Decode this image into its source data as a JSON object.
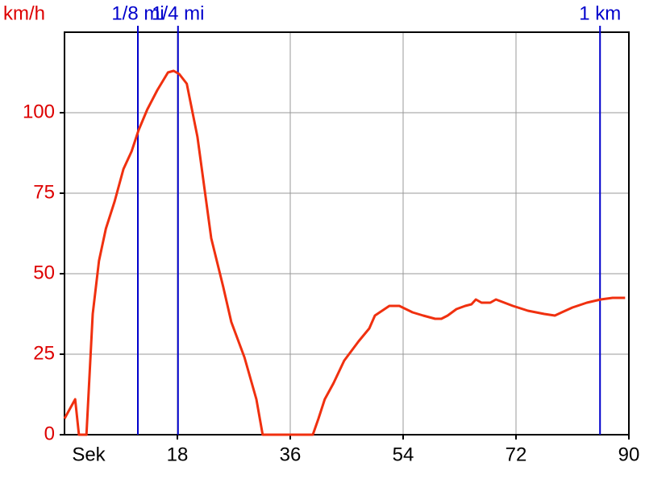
{
  "chart_data": {
    "type": "line",
    "ylabel": "km/h",
    "xlabel": "Sek",
    "x": [
      0,
      1.7,
      2.3,
      3.5,
      4.5,
      5.5,
      6.6,
      8,
      9.4,
      10.7,
      11.8,
      13.2,
      14.8,
      16.5,
      17.4,
      18.3,
      19.5,
      21.2,
      23.4,
      25.3,
      26.6,
      28.7,
      30.6,
      31.6,
      39.6,
      40.5,
      41.5,
      42.9,
      44.6,
      46.9,
      48.6,
      49.5,
      51.8,
      53.4,
      55.5,
      57.2,
      59.1,
      60.1,
      61.1,
      62.5,
      63.9,
      64.9,
      65.6,
      66.5,
      67.9,
      68.8,
      71.5,
      73.9,
      76.5,
      78.2,
      79.3,
      81,
      83.3,
      85.5,
      87.4,
      89.4
    ],
    "values": [
      5,
      11,
      0,
      0,
      37.5,
      54,
      64,
      72.5,
      82.5,
      88,
      94.5,
      101,
      107,
      112.5,
      113,
      112,
      109,
      92.5,
      61,
      46,
      35,
      24,
      11,
      0,
      0,
      5,
      11,
      16,
      23,
      29,
      33,
      37,
      40,
      40,
      38,
      37,
      36,
      36,
      37,
      39,
      40,
      40.5,
      42,
      41,
      41,
      42,
      40,
      38.5,
      37.5,
      37,
      38,
      39.5,
      41,
      42,
      42.5,
      42.5
    ],
    "color": "#f0300f",
    "xlim": [
      0,
      90
    ],
    "ylim": [
      0,
      125
    ],
    "xticks": [
      18,
      36,
      54,
      72,
      90
    ],
    "yticks": [
      0,
      25,
      50,
      75,
      100
    ],
    "grid": true,
    "markers": [
      {
        "x": 11.7,
        "label": "1/8 mi"
      },
      {
        "x": 18.1,
        "label": "1/4 mi"
      },
      {
        "x": 85.4,
        "label": "1 km"
      }
    ],
    "marker_color": "#0000cc",
    "label_color": "#dd0000"
  }
}
